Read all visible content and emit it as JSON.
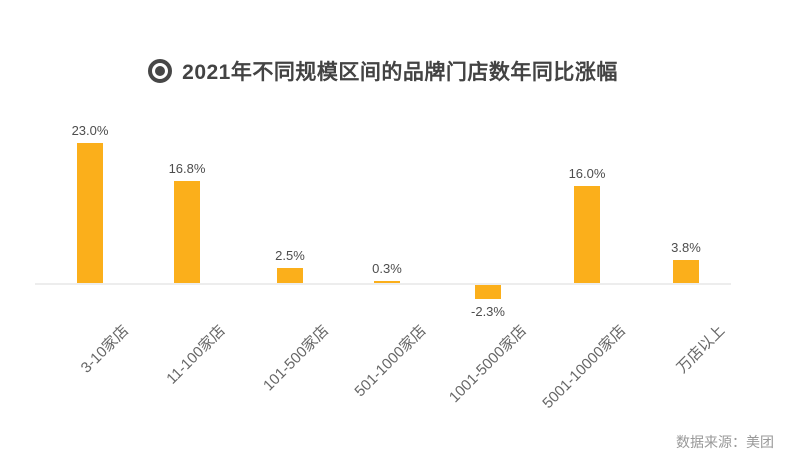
{
  "title": {
    "icon": "bullseye-icon",
    "text": "2021年不同规模区间的品牌门店数年同比涨幅"
  },
  "source": {
    "label": "数据来源：美团"
  },
  "chart_data": {
    "type": "bar",
    "title": "2021年不同规模区间的品牌门店数年同比涨幅",
    "categories": [
      "3-10家店",
      "11-100家店",
      "101-500家店",
      "501-1000家店",
      "1001-5000家店",
      "5001-10000家店",
      "万店以上"
    ],
    "values": [
      23.0,
      16.8,
      2.5,
      0.3,
      -2.3,
      16.0,
      3.8
    ],
    "data_labels": [
      "23.0%",
      "16.8%",
      "2.5%",
      "0.3%",
      "-2.3%",
      "16.0%",
      "3.8%"
    ],
    "unit": "%",
    "bar_color": "#FBAF1B",
    "value_label_color": "#4D4D4D",
    "axis_label_color": "#666666",
    "axis_line_color": "#EDEDED",
    "ylim": [
      -5,
      25
    ],
    "grid": false,
    "legend": false,
    "x_label_rotation_deg": 45
  }
}
